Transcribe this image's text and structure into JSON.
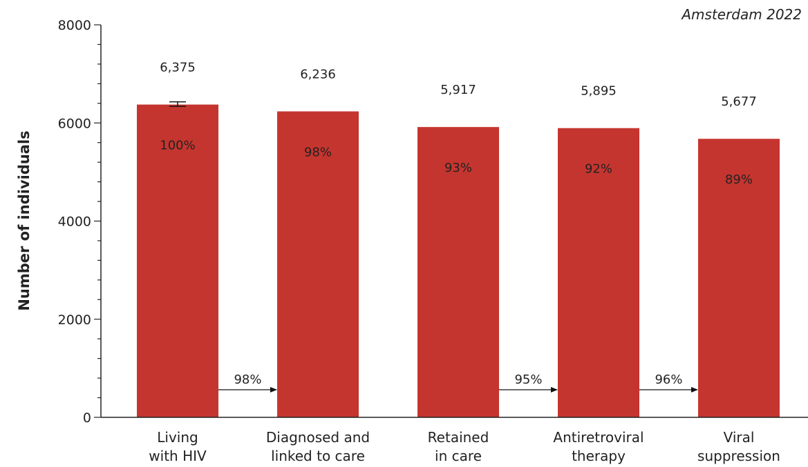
{
  "chart_data": {
    "type": "bar",
    "subtitle": "Amsterdam 2022",
    "ylabel": "Number of individuals",
    "xlabel": "",
    "ylim": [
      0,
      8000
    ],
    "yticks": [
      0,
      2000,
      4000,
      6000,
      8000
    ],
    "ytick_labels": [
      "0",
      "2000",
      "4000",
      "6000",
      "8000"
    ],
    "grid": false,
    "bar_color": "#c5352f",
    "categories": [
      [
        "Living",
        "with HIV"
      ],
      [
        "Diagnosed and",
        "linked to care"
      ],
      [
        "Retained",
        "in care"
      ],
      [
        "Antiretroviral",
        "therapy"
      ],
      [
        "Viral",
        "suppression"
      ]
    ],
    "values": [
      6375,
      6236,
      5917,
      5895,
      5677
    ],
    "value_labels": [
      "6,375",
      "6,236",
      "5,917",
      "5,895",
      "5,677"
    ],
    "percent_labels": [
      "100%",
      "98%",
      "93%",
      "92%",
      "89%"
    ],
    "error_bar": {
      "category_index": 0,
      "low": 6340,
      "high": 6430
    },
    "step_annotations": [
      {
        "from": 0,
        "to": 1,
        "label": "98%"
      },
      {
        "from": 2,
        "to": 3,
        "label": "95%"
      },
      {
        "from": 3,
        "to": 4,
        "label": "96%"
      }
    ]
  }
}
